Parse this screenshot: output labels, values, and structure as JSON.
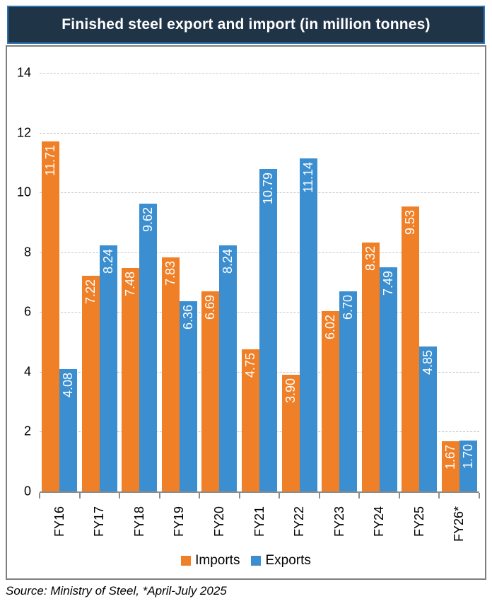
{
  "title": "Finished steel export and import (in million tonnes)",
  "source_note": "Source: Ministry of Steel, *April-July 2025",
  "colors": {
    "imports": "#f08028",
    "exports": "#3b8fd0",
    "title_background": "#203448",
    "title_border": "#2e74b5",
    "box_border": "#7f7f7f",
    "gridline": "#c8c8c8",
    "axis": "#8c8c8c"
  },
  "legend": {
    "position": "bottom",
    "items": [
      {
        "label": "Imports",
        "color": "#f08028"
      },
      {
        "label": "Exports",
        "color": "#3b8fd0"
      }
    ]
  },
  "chart_data": {
    "type": "bar",
    "title": "Finished steel export and import (in million tonnes)",
    "categories": [
      "FY16",
      "FY17",
      "FY18",
      "FY19",
      "FY20",
      "FY21",
      "FY22",
      "FY23",
      "FY24",
      "FY25",
      "FY26*"
    ],
    "series": [
      {
        "name": "Imports",
        "color": "#f08028",
        "values": [
          11.71,
          7.22,
          7.48,
          7.83,
          6.69,
          4.75,
          3.9,
          6.02,
          8.32,
          9.53,
          1.67
        ]
      },
      {
        "name": "Exports",
        "color": "#3b8fd0",
        "values": [
          4.08,
          8.24,
          9.62,
          6.36,
          8.24,
          10.79,
          11.14,
          6.7,
          7.49,
          4.85,
          1.7
        ]
      }
    ],
    "xlabel": "",
    "ylabel": "",
    "ylim": [
      0,
      14
    ],
    "ytick_step": 2,
    "grid": "horizontal-dashed",
    "legend_position": "bottom",
    "value_labels": "inside bar top, rotated 90deg CCW, white, two decimals",
    "x_labels_rotation": "90deg CCW"
  }
}
